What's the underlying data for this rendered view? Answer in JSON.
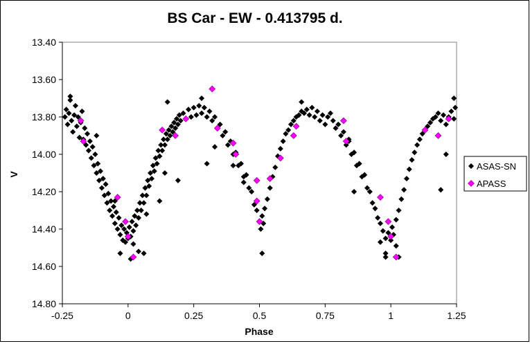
{
  "chart_data": {
    "type": "scatter",
    "title": "BS Car - EW - 0.413795 d.",
    "xlabel": "Phase",
    "ylabel": "V",
    "xlim": [
      -0.25,
      1.25
    ],
    "ylim": [
      13.4,
      14.8
    ],
    "y_reversed": true,
    "grid": false,
    "legend_position": "right",
    "x_ticks": [
      "-0.25",
      "0",
      "0.25",
      "0.5",
      "0.75",
      "1",
      "1.25"
    ],
    "y_ticks": [
      "13.40",
      "13.60",
      "13.80",
      "14.00",
      "14.20",
      "14.40",
      "14.60",
      "14.80"
    ],
    "series": [
      {
        "name": "ASAS-SN",
        "color": "#000000",
        "marker": "diamond",
        "points": [
          [
            -0.24,
            13.8
          ],
          [
            -0.235,
            13.76
          ],
          [
            -0.23,
            13.84
          ],
          [
            -0.225,
            13.78
          ],
          [
            -0.22,
            13.71
          ],
          [
            -0.215,
            13.82
          ],
          [
            -0.21,
            13.88
          ],
          [
            -0.205,
            13.79
          ],
          [
            -0.2,
            13.74
          ],
          [
            -0.195,
            13.85
          ],
          [
            -0.19,
            13.8
          ],
          [
            -0.185,
            13.91
          ],
          [
            -0.18,
            13.83
          ],
          [
            -0.175,
            13.77
          ],
          [
            -0.17,
            13.92
          ],
          [
            -0.165,
            13.86
          ],
          [
            -0.16,
            13.95
          ],
          [
            -0.155,
            13.89
          ],
          [
            -0.15,
            13.98
          ],
          [
            -0.145,
            13.93
          ],
          [
            -0.14,
            14.02
          ],
          [
            -0.135,
            13.96
          ],
          [
            -0.13,
            14.06
          ],
          [
            -0.125,
            14.0
          ],
          [
            -0.12,
            14.1
          ],
          [
            -0.115,
            14.05
          ],
          [
            -0.11,
            14.14
          ],
          [
            -0.105,
            14.09
          ],
          [
            -0.1,
            14.18
          ],
          [
            -0.095,
            14.13
          ],
          [
            -0.09,
            14.22
          ],
          [
            -0.085,
            14.16
          ],
          [
            -0.08,
            14.26
          ],
          [
            -0.075,
            14.21
          ],
          [
            -0.07,
            14.3
          ],
          [
            -0.065,
            14.25
          ],
          [
            -0.06,
            14.33
          ],
          [
            -0.055,
            14.28
          ],
          [
            -0.05,
            14.37
          ],
          [
            -0.045,
            14.31
          ],
          [
            -0.04,
            14.4
          ],
          [
            -0.035,
            14.34
          ],
          [
            -0.03,
            14.43
          ],
          [
            -0.025,
            14.38
          ],
          [
            -0.02,
            14.46
          ],
          [
            -0.015,
            14.4
          ],
          [
            -0.01,
            14.47
          ],
          [
            -0.005,
            14.42
          ],
          [
            0.0,
            14.45
          ],
          [
            0.005,
            14.39
          ],
          [
            0.01,
            14.44
          ],
          [
            0.015,
            14.36
          ],
          [
            0.02,
            14.41
          ],
          [
            0.025,
            14.33
          ],
          [
            0.03,
            14.38
          ],
          [
            0.035,
            14.3
          ],
          [
            0.04,
            14.34
          ],
          [
            0.045,
            14.26
          ],
          [
            0.05,
            14.3
          ],
          [
            0.055,
            14.22
          ],
          [
            0.06,
            14.26
          ],
          [
            0.065,
            14.18
          ],
          [
            0.07,
            14.22
          ],
          [
            0.075,
            14.14
          ],
          [
            0.08,
            14.17
          ],
          [
            0.085,
            14.1
          ],
          [
            0.09,
            14.13
          ],
          [
            0.095,
            14.06
          ],
          [
            0.1,
            14.09
          ],
          [
            0.105,
            14.02
          ],
          [
            0.11,
            14.05
          ],
          [
            0.115,
            13.98
          ],
          [
            0.12,
            14.01
          ],
          [
            0.125,
            13.95
          ],
          [
            0.13,
            13.98
          ],
          [
            0.135,
            13.92
          ],
          [
            0.14,
            13.95
          ],
          [
            0.145,
            13.89
          ],
          [
            0.15,
            13.92
          ],
          [
            0.155,
            13.87
          ],
          [
            0.16,
            13.9
          ],
          [
            0.165,
            13.85
          ],
          [
            0.17,
            13.88
          ],
          [
            0.175,
            13.83
          ],
          [
            0.18,
            13.86
          ],
          [
            0.185,
            13.81
          ],
          [
            0.19,
            13.84
          ],
          [
            0.195,
            13.79
          ],
          [
            0.2,
            13.82
          ],
          [
            0.21,
            13.78
          ],
          [
            0.22,
            13.81
          ],
          [
            0.23,
            13.76
          ],
          [
            0.24,
            13.8
          ],
          [
            0.25,
            13.75
          ],
          [
            0.26,
            13.79
          ],
          [
            0.27,
            13.74
          ],
          [
            0.28,
            13.78
          ],
          [
            0.29,
            13.75
          ],
          [
            0.3,
            13.8
          ],
          [
            0.31,
            13.77
          ],
          [
            0.32,
            13.82
          ],
          [
            0.33,
            13.8
          ],
          [
            0.34,
            13.86
          ],
          [
            0.35,
            13.84
          ],
          [
            0.36,
            13.9
          ],
          [
            0.37,
            13.88
          ],
          [
            0.38,
            13.95
          ],
          [
            0.39,
            13.93
          ],
          [
            0.4,
            14.0
          ],
          [
            0.41,
            13.99
          ],
          [
            0.42,
            14.06
          ],
          [
            0.43,
            14.05
          ],
          [
            0.44,
            14.12
          ],
          [
            0.45,
            14.11
          ],
          [
            0.46,
            14.18
          ],
          [
            0.47,
            14.2
          ],
          [
            0.48,
            14.27
          ],
          [
            0.49,
            14.3
          ],
          [
            0.5,
            14.36
          ],
          [
            0.505,
            14.4
          ],
          [
            0.51,
            14.33
          ],
          [
            0.515,
            14.37
          ],
          [
            0.52,
            14.29
          ],
          [
            0.53,
            14.24
          ],
          [
            0.54,
            14.18
          ],
          [
            0.55,
            14.12
          ],
          [
            0.56,
            14.07
          ],
          [
            0.57,
            14.01
          ],
          [
            0.58,
            13.97
          ],
          [
            0.59,
            13.93
          ],
          [
            0.6,
            13.89
          ],
          [
            0.61,
            13.87
          ],
          [
            0.62,
            13.84
          ],
          [
            0.63,
            13.82
          ],
          [
            0.64,
            13.8
          ],
          [
            0.65,
            13.79
          ],
          [
            0.66,
            13.77
          ],
          [
            0.67,
            13.78
          ],
          [
            0.68,
            13.76
          ],
          [
            0.69,
            13.79
          ],
          [
            0.7,
            13.75
          ],
          [
            0.71,
            13.8
          ],
          [
            0.72,
            13.77
          ],
          [
            0.73,
            13.82
          ],
          [
            0.74,
            13.79
          ],
          [
            0.75,
            13.84
          ],
          [
            0.76,
            13.8
          ],
          [
            0.77,
            13.78
          ],
          [
            0.78,
            13.82
          ],
          [
            0.79,
            13.86
          ],
          [
            0.8,
            13.84
          ],
          [
            0.81,
            13.9
          ],
          [
            0.82,
            13.88
          ],
          [
            0.83,
            13.95
          ],
          [
            0.84,
            13.93
          ],
          [
            0.85,
            14.0
          ],
          [
            0.86,
            13.99
          ],
          [
            0.87,
            14.06
          ],
          [
            0.88,
            14.05
          ],
          [
            0.89,
            14.12
          ],
          [
            0.9,
            14.11
          ],
          [
            0.91,
            14.18
          ],
          [
            0.92,
            14.2
          ],
          [
            0.93,
            14.26
          ],
          [
            0.94,
            14.29
          ],
          [
            0.95,
            14.34
          ],
          [
            0.96,
            14.37
          ],
          [
            0.97,
            14.41
          ],
          [
            0.98,
            14.45
          ],
          [
            0.99,
            14.42
          ],
          [
            1.0,
            14.46
          ],
          [
            1.005,
            14.39
          ],
          [
            1.01,
            14.43
          ],
          [
            1.02,
            14.35
          ],
          [
            1.03,
            14.3
          ],
          [
            1.04,
            14.24
          ],
          [
            1.05,
            14.19
          ],
          [
            1.06,
            14.13
          ],
          [
            1.07,
            14.08
          ],
          [
            1.08,
            14.03
          ],
          [
            1.09,
            13.99
          ],
          [
            1.1,
            13.95
          ],
          [
            1.11,
            13.92
          ],
          [
            1.12,
            13.89
          ],
          [
            1.13,
            13.87
          ],
          [
            1.14,
            13.85
          ],
          [
            1.15,
            13.83
          ],
          [
            1.16,
            13.81
          ],
          [
            1.17,
            13.8
          ],
          [
            1.18,
            13.78
          ],
          [
            1.19,
            13.82
          ],
          [
            1.2,
            13.79
          ],
          [
            1.21,
            13.84
          ],
          [
            1.22,
            13.8
          ],
          [
            1.23,
            13.77
          ],
          [
            1.24,
            13.81
          ],
          [
            1.245,
            13.75
          ],
          [
            0.3,
            14.05
          ],
          [
            0.4,
            14.06
          ],
          [
            0.86,
            14.2
          ],
          [
            0.98,
            14.53
          ],
          [
            1.03,
            14.55
          ],
          [
            0.06,
            14.53
          ],
          [
            -0.03,
            14.53
          ],
          [
            0.51,
            14.53
          ],
          [
            0.19,
            14.14
          ],
          [
            1.19,
            14.19
          ],
          [
            1.21,
            14.0
          ],
          [
            0.15,
            13.72
          ],
          [
            0.66,
            13.72
          ],
          [
            -0.22,
            13.69
          ],
          [
            1.24,
            13.7
          ],
          [
            0.04,
            14.52
          ],
          [
            0.01,
            14.56
          ],
          [
            0.02,
            14.48
          ],
          [
            1.02,
            14.49
          ],
          [
            0.28,
            13.7
          ],
          [
            0.33,
            13.96
          ],
          [
            0.84,
            13.92
          ],
          [
            -0.12,
            13.9
          ],
          [
            0.14,
            14.1
          ],
          [
            0.12,
            14.25
          ],
          [
            0.98,
            14.55
          ],
          [
            -0.05,
            14.25
          ],
          [
            0.96,
            14.47
          ],
          [
            0.07,
            14.32
          ],
          [
            0.44,
            14.15
          ]
        ]
      },
      {
        "name": "APASS",
        "color": "#ff00ff",
        "marker": "diamond",
        "points": [
          [
            -0.18,
            13.82
          ],
          [
            -0.17,
            13.93
          ],
          [
            -0.04,
            14.23
          ],
          [
            -0.01,
            14.36
          ],
          [
            0.0,
            14.44
          ],
          [
            0.02,
            14.55
          ],
          [
            0.13,
            13.87
          ],
          [
            0.18,
            13.9
          ],
          [
            0.22,
            13.81
          ],
          [
            0.32,
            13.65
          ],
          [
            0.34,
            13.86
          ],
          [
            0.4,
            13.94
          ],
          [
            0.41,
            14.0
          ],
          [
            0.49,
            14.14
          ],
          [
            0.49,
            14.25
          ],
          [
            0.5,
            14.36
          ],
          [
            0.54,
            14.13
          ],
          [
            0.58,
            14.02
          ],
          [
            0.63,
            13.9
          ],
          [
            0.64,
            13.85
          ],
          [
            0.82,
            13.82
          ],
          [
            0.83,
            13.93
          ],
          [
            0.96,
            14.23
          ],
          [
            0.99,
            14.36
          ],
          [
            1.0,
            14.44
          ],
          [
            1.02,
            14.55
          ],
          [
            1.13,
            13.87
          ],
          [
            1.18,
            13.9
          ],
          [
            1.22,
            13.81
          ]
        ]
      }
    ]
  }
}
